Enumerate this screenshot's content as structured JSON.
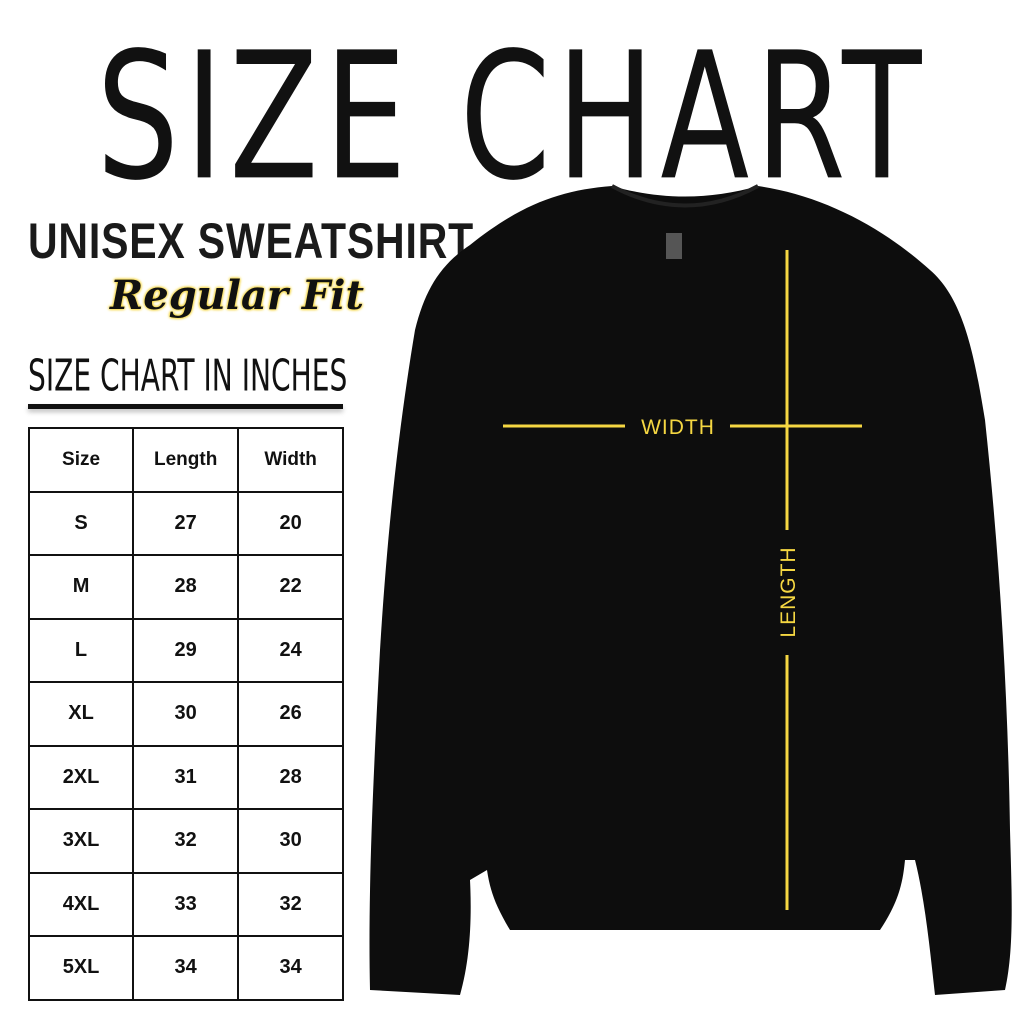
{
  "title": "SIZE CHART",
  "product": "UNISEX SWEATSHIRT",
  "fit": "Regular Fit",
  "table_title": "SIZE CHART IN INCHES",
  "table": {
    "headers": [
      "Size",
      "Length",
      "Width"
    ],
    "rows": [
      [
        "S",
        "27",
        "20"
      ],
      [
        "M",
        "28",
        "22"
      ],
      [
        "L",
        "29",
        "24"
      ],
      [
        "XL",
        "30",
        "26"
      ],
      [
        "2XL",
        "31",
        "28"
      ],
      [
        "3XL",
        "32",
        "30"
      ],
      [
        "4XL",
        "33",
        "32"
      ],
      [
        "5XL",
        "34",
        "34"
      ]
    ]
  },
  "diagram": {
    "width_label": "WIDTH",
    "length_label": "LENGTH",
    "garment_color": "#0d0d0d",
    "line_color": "#f5d742"
  }
}
